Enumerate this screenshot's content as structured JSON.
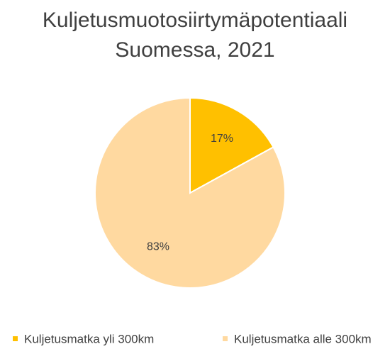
{
  "chart_data": {
    "type": "pie",
    "title": "Kuljetusmuotosiirtymäpotentiaali Suomessa, 2021",
    "categories": [
      "Kuljetusmatka yli 300km",
      "Kuljetusmatka alle 300km"
    ],
    "values": [
      17,
      83
    ],
    "value_labels": [
      "17%",
      "83%"
    ],
    "colors": [
      "#FFC000",
      "#FFD9A0"
    ],
    "legend": "bottom"
  }
}
